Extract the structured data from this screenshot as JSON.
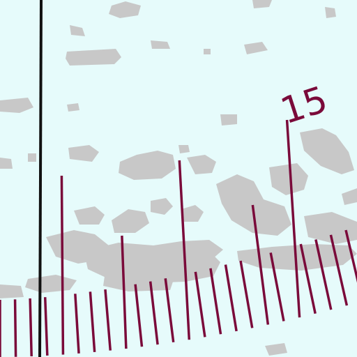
{
  "map": {
    "background_color": "#e6fbfb",
    "land_color": "#c8c8c8",
    "scale_color": "#7a0a3a",
    "meridian_color": "#111111",
    "scale_label": "15"
  }
}
